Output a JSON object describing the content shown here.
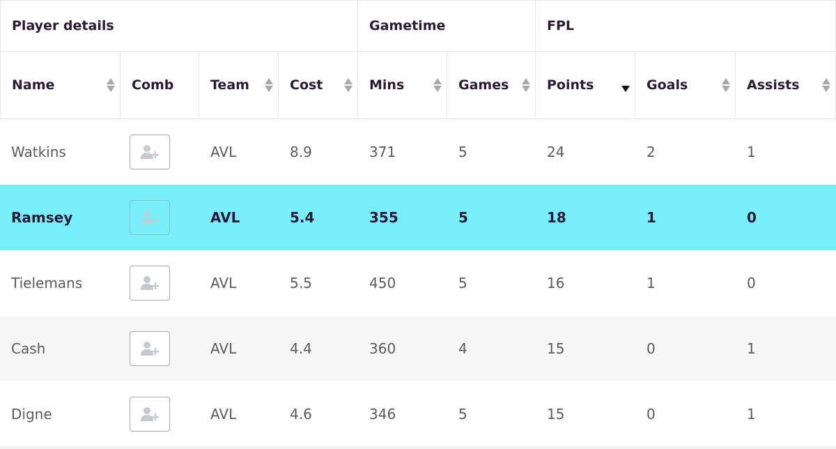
{
  "table": {
    "groups": [
      {
        "label": "Player details"
      },
      {
        "label": "Gametime"
      },
      {
        "label": "FPL"
      }
    ],
    "columns": [
      {
        "label": "Name",
        "sortable": true,
        "sort": "none"
      },
      {
        "label": "Comb",
        "sortable": false,
        "sort": "none"
      },
      {
        "label": "Team",
        "sortable": true,
        "sort": "none"
      },
      {
        "label": "Cost",
        "sortable": true,
        "sort": "none"
      },
      {
        "label": "Mins",
        "sortable": true,
        "sort": "none"
      },
      {
        "label": "Games",
        "sortable": true,
        "sort": "none"
      },
      {
        "label": "Points",
        "sortable": true,
        "sort": "descending"
      },
      {
        "label": "Goals",
        "sortable": true,
        "sort": "none"
      },
      {
        "label": "Assists",
        "sortable": true,
        "sort": "none"
      }
    ],
    "rows": [
      {
        "name": "Watkins",
        "team": "AVL",
        "cost": "8.9",
        "mins": "371",
        "games": "5",
        "points": "24",
        "goals": "2",
        "assists": "1",
        "highlighted": false
      },
      {
        "name": "Ramsey",
        "team": "AVL",
        "cost": "5.4",
        "mins": "355",
        "games": "5",
        "points": "18",
        "goals": "1",
        "assists": "0",
        "highlighted": true
      },
      {
        "name": "Tielemans",
        "team": "AVL",
        "cost": "5.5",
        "mins": "450",
        "games": "5",
        "points": "16",
        "goals": "1",
        "assists": "0",
        "highlighted": false
      },
      {
        "name": "Cash",
        "team": "AVL",
        "cost": "4.4",
        "mins": "360",
        "games": "4",
        "points": "15",
        "goals": "0",
        "assists": "1",
        "highlighted": false
      },
      {
        "name": "Digne",
        "team": "AVL",
        "cost": "4.6",
        "mins": "346",
        "games": "5",
        "points": "15",
        "goals": "0",
        "assists": "1",
        "highlighted": false
      }
    ],
    "comb_icon": "add-user-icon",
    "colors": {
      "highlight_row": "#77eef9",
      "alt_row": "#f7f7f7",
      "header_text": "#2b1a34",
      "cell_text": "#5a5a5a"
    }
  }
}
